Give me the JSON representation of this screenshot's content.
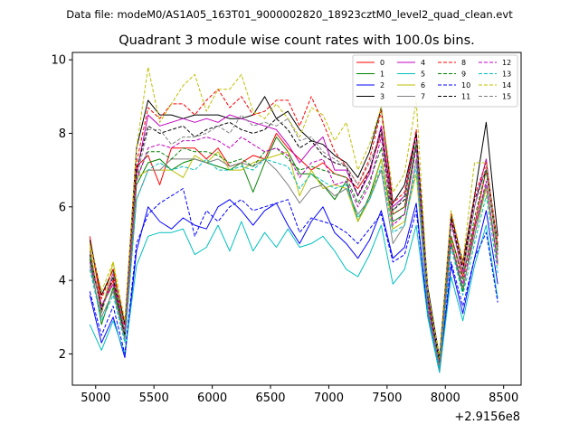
{
  "chart_data": {
    "type": "line",
    "suptitle": "Data file: modeM0/AS1A05_163T01_9000002820_18923cztM0_level2_quad_clean.evt",
    "title": "Quadrant 3 module wise count rates with 100.0s bins.",
    "xlabel": "",
    "ylabel": "",
    "x_offset_label": "+2.9156e8",
    "xlim": [
      4800,
      8650
    ],
    "ylim": [
      1.15,
      10.2
    ],
    "x_ticks": [
      5000,
      5500,
      6000,
      6500,
      7000,
      7500,
      8000,
      8500
    ],
    "y_ticks": [
      2,
      4,
      6,
      8,
      10
    ],
    "legend_position": "top-right",
    "x": [
      4950,
      5050,
      5150,
      5250,
      5350,
      5450,
      5550,
      5650,
      5750,
      5850,
      5950,
      6050,
      6150,
      6250,
      6350,
      6450,
      6550,
      6650,
      6750,
      6850,
      6950,
      7050,
      7150,
      7250,
      7350,
      7450,
      7550,
      7650,
      7750,
      7850,
      7950,
      8050,
      8150,
      8250,
      8350,
      8450
    ],
    "series": [
      {
        "name": "0",
        "color": "#ff0000",
        "dash": "solid",
        "values": [
          5.2,
          3.3,
          4.0,
          2.4,
          7.1,
          7.4,
          6.6,
          7.6,
          7.6,
          7.6,
          7.3,
          7.6,
          7.1,
          7.2,
          7.4,
          7.3,
          8.0,
          7.6,
          7.3,
          7.0,
          7.2,
          6.9,
          6.8,
          6.5,
          7.0,
          8.0,
          5.8,
          6.0,
          7.7,
          3.4,
          1.6,
          5.2,
          4.1,
          5.5,
          7.0,
          4.8
        ]
      },
      {
        "name": "1",
        "color": "#008000",
        "dash": "solid",
        "values": [
          4.6,
          2.8,
          3.8,
          2.5,
          6.6,
          7.2,
          7.3,
          7.0,
          7.2,
          7.3,
          7.2,
          7.1,
          7.0,
          7.2,
          6.4,
          7.2,
          7.9,
          7.5,
          6.9,
          6.9,
          6.6,
          6.2,
          6.7,
          5.6,
          6.3,
          7.3,
          5.6,
          5.8,
          7.7,
          3.1,
          1.6,
          5.0,
          3.7,
          5.4,
          6.6,
          4.5
        ]
      },
      {
        "name": "2",
        "color": "#0000ff",
        "dash": "solid",
        "values": [
          3.6,
          2.3,
          3.0,
          1.9,
          4.8,
          6.0,
          5.6,
          5.4,
          5.7,
          5.5,
          5.4,
          6.0,
          6.2,
          5.9,
          5.5,
          5.9,
          6.1,
          5.5,
          5.0,
          5.6,
          6.0,
          5.3,
          5.0,
          4.6,
          5.1,
          5.9,
          4.6,
          4.9,
          6.1,
          3.0,
          1.5,
          4.4,
          3.1,
          4.6,
          5.9,
          3.9
        ]
      },
      {
        "name": "3",
        "color": "#000000",
        "dash": "solid",
        "values": [
          5.1,
          3.6,
          4.3,
          2.8,
          7.6,
          8.9,
          8.5,
          8.5,
          8.4,
          8.5,
          8.5,
          8.5,
          8.4,
          8.4,
          8.5,
          9.0,
          8.4,
          8.6,
          8.1,
          7.8,
          7.7,
          7.4,
          7.2,
          6.8,
          7.5,
          8.7,
          6.1,
          6.6,
          8.0,
          3.8,
          1.9,
          5.8,
          4.5,
          6.3,
          8.3,
          5.2
        ]
      },
      {
        "name": "4",
        "color": "#c000c0",
        "dash": "solid",
        "values": [
          4.8,
          3.2,
          4.2,
          2.5,
          6.9,
          8.5,
          8.2,
          8.3,
          8.4,
          8.3,
          8.4,
          8.3,
          8.5,
          8.4,
          8.3,
          8.2,
          8.1,
          7.7,
          7.2,
          7.6,
          7.9,
          7.0,
          7.0,
          6.3,
          6.9,
          8.2,
          6.0,
          6.3,
          8.0,
          3.6,
          1.7,
          5.6,
          4.2,
          6.0,
          7.3,
          4.8
        ]
      },
      {
        "name": "5",
        "color": "#00bfbf",
        "dash": "solid",
        "values": [
          2.8,
          2.1,
          2.9,
          2.0,
          4.4,
          5.2,
          5.3,
          5.3,
          5.4,
          4.7,
          4.9,
          5.5,
          4.8,
          5.6,
          4.8,
          5.3,
          4.9,
          5.4,
          4.9,
          5.0,
          5.2,
          4.8,
          4.3,
          4.1,
          4.7,
          5.5,
          3.9,
          4.3,
          5.5,
          3.0,
          1.5,
          4.1,
          2.9,
          4.4,
          5.5,
          3.5
        ]
      },
      {
        "name": "6",
        "color": "#bfbf00",
        "dash": "solid",
        "values": [
          4.9,
          3.1,
          4.5,
          2.5,
          6.8,
          7.0,
          7.0,
          7.0,
          6.8,
          7.4,
          7.2,
          7.5,
          7.0,
          7.0,
          7.2,
          7.3,
          7.4,
          7.5,
          6.3,
          7.0,
          6.5,
          6.6,
          6.5,
          5.6,
          6.2,
          7.3,
          5.4,
          5.6,
          6.9,
          3.2,
          1.6,
          5.1,
          3.8,
          5.2,
          6.5,
          4.4
        ]
      },
      {
        "name": "7",
        "color": "#808080",
        "dash": "solid",
        "values": [
          4.4,
          3.0,
          3.7,
          2.4,
          6.2,
          7.0,
          7.0,
          7.3,
          7.3,
          7.3,
          7.2,
          7.3,
          7.1,
          7.2,
          7.1,
          7.3,
          7.0,
          6.6,
          6.1,
          6.5,
          6.6,
          6.3,
          6.5,
          5.8,
          6.2,
          7.0,
          5.0,
          5.5,
          7.3,
          3.2,
          1.6,
          5.0,
          3.8,
          5.2,
          6.6,
          4.5
        ]
      },
      {
        "name": "8",
        "color": "#ff0000",
        "dash": "dashed",
        "values": [
          5.0,
          3.5,
          4.3,
          2.7,
          7.2,
          8.7,
          8.4,
          8.8,
          8.8,
          8.5,
          8.9,
          9.2,
          8.7,
          9.0,
          8.5,
          8.6,
          8.9,
          8.9,
          8.2,
          9.0,
          8.3,
          7.5,
          7.1,
          6.6,
          7.3,
          8.6,
          6.1,
          6.4,
          8.1,
          3.5,
          1.8,
          5.8,
          4.4,
          6.3,
          7.2,
          5.0
        ]
      },
      {
        "name": "9",
        "color": "#008000",
        "dash": "dashed",
        "values": [
          4.6,
          3.3,
          3.9,
          2.6,
          6.8,
          7.5,
          7.5,
          7.3,
          7.6,
          7.5,
          7.5,
          7.4,
          7.2,
          7.3,
          7.1,
          7.5,
          7.6,
          7.3,
          7.0,
          7.1,
          7.0,
          6.9,
          6.8,
          6.1,
          6.7,
          7.6,
          5.8,
          6.0,
          7.7,
          3.4,
          1.7,
          5.2,
          4.0,
          5.7,
          7.0,
          4.7
        ]
      },
      {
        "name": "10",
        "color": "#0000ff",
        "dash": "dashed",
        "values": [
          3.7,
          2.5,
          3.3,
          2.0,
          5.0,
          5.8,
          6.1,
          6.3,
          6.5,
          5.2,
          5.9,
          5.6,
          6.0,
          6.2,
          5.9,
          6.0,
          6.1,
          6.2,
          5.3,
          5.7,
          5.6,
          5.5,
          5.3,
          5.0,
          5.4,
          5.8,
          4.5,
          4.7,
          5.9,
          3.1,
          1.6,
          4.5,
          3.3,
          4.6,
          5.3,
          3.4
        ]
      },
      {
        "name": "11",
        "color": "#000000",
        "dash": "dashed",
        "values": [
          4.7,
          3.2,
          4.1,
          2.5,
          7.0,
          8.2,
          8.0,
          8.1,
          8.2,
          7.9,
          8.1,
          8.2,
          8.3,
          8.1,
          8.0,
          8.1,
          8.4,
          8.1,
          7.6,
          7.8,
          7.4,
          7.2,
          7.1,
          6.3,
          7.0,
          8.1,
          5.9,
          6.2,
          8.0,
          3.5,
          1.8,
          5.7,
          4.3,
          6.2,
          7.0,
          4.9
        ]
      },
      {
        "name": "12",
        "color": "#c000c0",
        "dash": "dashed",
        "values": [
          4.5,
          3.3,
          3.9,
          2.6,
          6.7,
          7.6,
          7.7,
          7.6,
          7.8,
          7.8,
          7.9,
          7.8,
          7.6,
          7.9,
          7.7,
          7.5,
          7.6,
          7.4,
          6.8,
          7.2,
          7.3,
          6.6,
          6.7,
          6.0,
          6.6,
          7.9,
          5.5,
          5.8,
          7.6,
          3.3,
          1.6,
          5.0,
          3.9,
          5.4,
          6.7,
          4.4
        ]
      },
      {
        "name": "13",
        "color": "#00bfbf",
        "dash": "dashed",
        "values": [
          4.3,
          2.9,
          3.6,
          2.3,
          6.2,
          7.0,
          7.2,
          7.0,
          7.1,
          7.0,
          7.3,
          7.0,
          7.0,
          7.1,
          7.0,
          7.3,
          7.2,
          7.1,
          6.5,
          6.9,
          6.7,
          6.5,
          6.6,
          5.7,
          6.2,
          7.1,
          5.3,
          5.5,
          7.1,
          3.1,
          1.6,
          4.9,
          3.6,
          5.0,
          6.3,
          4.2
        ]
      },
      {
        "name": "14",
        "color": "#bfbf00",
        "dash": "dashed",
        "values": [
          5.0,
          3.7,
          4.5,
          2.9,
          7.6,
          9.8,
          8.3,
          8.8,
          9.3,
          9.6,
          8.6,
          9.2,
          9.2,
          9.6,
          8.6,
          8.4,
          8.8,
          8.4,
          7.9,
          8.7,
          8.5,
          7.8,
          8.3,
          7.0,
          7.7,
          8.7,
          6.4,
          6.9,
          8.9,
          3.7,
          1.9,
          5.9,
          4.5,
          7.2,
          7.2,
          4.8
        ]
      },
      {
        "name": "15",
        "color": "#808080",
        "dash": "dashed",
        "values": [
          4.8,
          3.1,
          4.2,
          2.6,
          6.8,
          8.1,
          8.1,
          7.7,
          7.9,
          7.9,
          8.0,
          8.2,
          8.0,
          8.5,
          8.2,
          8.3,
          8.2,
          8.4,
          7.8,
          7.9,
          7.5,
          7.3,
          7.1,
          6.6,
          7.2,
          8.0,
          5.9,
          6.3,
          7.8,
          3.4,
          1.7,
          5.5,
          4.2,
          6.0,
          7.1,
          4.7
        ]
      }
    ]
  }
}
